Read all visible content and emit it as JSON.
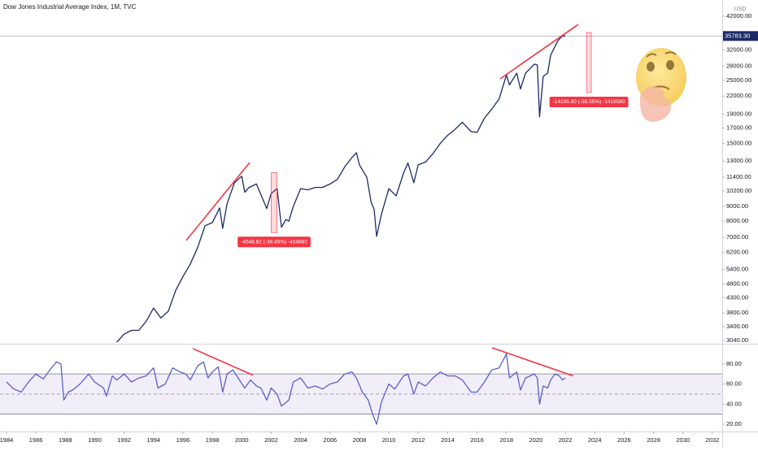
{
  "chart_data": [
    {
      "type": "line",
      "title": "Dow Jones Industrial Average Index, 1M, TVC",
      "unit": "USD",
      "yscale": "log",
      "color": "#1e2a66",
      "xlim": [
        1983.56,
        2032.67
      ],
      "ylim": [
        2961,
        47900
      ],
      "yticks": [
        {
          "value": 42000,
          "label": "42000.00"
        },
        {
          "value": 32000,
          "label": "32000.00"
        },
        {
          "value": 28000,
          "label": "28000.00"
        },
        {
          "value": 25000,
          "label": "25000.00"
        },
        {
          "value": 22000,
          "label": "22000.00"
        },
        {
          "value": 19000,
          "label": "19000.00"
        },
        {
          "value": 17000,
          "label": "17000.00"
        },
        {
          "value": 15000,
          "label": "15000.00"
        },
        {
          "value": 13000,
          "label": "13000.00"
        },
        {
          "value": 11400,
          "label": "11400.00"
        },
        {
          "value": 10200,
          "label": "10200.00"
        },
        {
          "value": 9000,
          "label": "9000.00"
        },
        {
          "value": 8000,
          "label": "8000.00"
        },
        {
          "value": 7000,
          "label": "7000.00"
        },
        {
          "value": 6200,
          "label": "6200.00"
        },
        {
          "value": 5400,
          "label": "5400.00"
        },
        {
          "value": 4800,
          "label": "4800.00"
        },
        {
          "value": 4300,
          "label": "4300.00"
        },
        {
          "value": 3800,
          "label": "3800.00"
        },
        {
          "value": 3400,
          "label": "3400.00"
        },
        {
          "value": 3040,
          "label": "3040.00"
        }
      ],
      "x": [
        1991.5,
        1992.0,
        1992.5,
        1993.0,
        1993.5,
        1994.0,
        1994.5,
        1995.0,
        1995.5,
        1996.0,
        1996.5,
        1997.0,
        1997.5,
        1998.0,
        1998.5,
        1998.7,
        1999.0,
        1999.5,
        2000.0,
        2000.2,
        2000.5,
        2001.0,
        2001.7,
        2002.0,
        2002.4,
        2002.7,
        2003.0,
        2003.2,
        2003.5,
        2004.0,
        2004.5,
        2005.0,
        2005.5,
        2006.0,
        2006.5,
        2007.0,
        2007.5,
        2007.8,
        2008.0,
        2008.5,
        2008.8,
        2009.0,
        2009.17,
        2009.5,
        2010.0,
        2010.5,
        2011.0,
        2011.3,
        2011.7,
        2012.0,
        2012.5,
        2013.0,
        2013.5,
        2014.0,
        2014.5,
        2015.0,
        2015.6,
        2016.0,
        2016.5,
        2017.0,
        2017.5,
        2018.0,
        2018.2,
        2018.7,
        2018.95,
        2019.3,
        2019.9,
        2020.1,
        2020.25,
        2020.5,
        2020.8,
        2021.0,
        2021.5,
        2021.8,
        2022.0
      ],
      "values": [
        3000,
        3200,
        3300,
        3300,
        3550,
        3950,
        3650,
        3850,
        4550,
        5100,
        5650,
        6450,
        7700,
        7900,
        8900,
        7540,
        9200,
        10900,
        11500,
        10100,
        10500,
        10800,
        8850,
        10000,
        10400,
        7600,
        8100,
        7990,
        9000,
        10400,
        10300,
        10500,
        10500,
        10800,
        11200,
        12400,
        13400,
        13900,
        12600,
        11400,
        9300,
        8800,
        7060,
        8450,
        10400,
        9800,
        11800,
        12800,
        10900,
        12600,
        12900,
        13800,
        15000,
        16000,
        16800,
        17800,
        16500,
        16400,
        18400,
        19800,
        21500,
        26100,
        24100,
        26500,
        23300,
        26500,
        28500,
        28300,
        18600,
        25800,
        26500,
        30600,
        34500,
        35800,
        35783.3
      ],
      "last_value": {
        "value": 35783.3,
        "label": "35783.30"
      },
      "trendlines": [
        {
          "x": [
            1996.22,
            2000.54
          ],
          "y": [
            6836,
            12850
          ]
        },
        {
          "x": [
            2017.57,
            2022.88
          ],
          "y": [
            25300,
            39300
          ]
        }
      ],
      "trend_color": "#f23645",
      "measures": [
        {
          "x": [
            2002.0,
            2002.4
          ],
          "y": [
            11830,
            7281
          ],
          "label": "-4548.82 (-38.45%) -454882"
        },
        {
          "x": [
            2023.44,
            2023.77
          ],
          "y": [
            36824,
            22628
          ],
          "label": "-14195.80 (-38.55%) -1419580"
        }
      ]
    },
    {
      "type": "line",
      "color": "#5b5fc7",
      "xlim": [
        1983.56,
        2032.67
      ],
      "ylim": [
        12.8,
        99.2
      ],
      "yticks": [
        {
          "value": 80,
          "label": "80.00"
        },
        {
          "value": 60,
          "label": "60.00"
        },
        {
          "value": 40,
          "label": "40.00"
        },
        {
          "value": 20,
          "label": "20.00"
        }
      ],
      "band": [
        30,
        70
      ],
      "midline": 50,
      "xticks": [
        1984,
        1986,
        1988,
        1990,
        1992,
        1994,
        1996,
        1998,
        2000,
        2002,
        2004,
        2006,
        2008,
        2010,
        2012,
        2014,
        2016,
        2018,
        2020,
        2022,
        2024,
        2026,
        2028,
        2030,
        2032
      ],
      "x": [
        1984.0,
        1984.5,
        1985.0,
        1985.5,
        1986.0,
        1986.5,
        1987.0,
        1987.4,
        1987.7,
        1987.9,
        1988.2,
        1988.5,
        1989.0,
        1989.6,
        1990.0,
        1990.6,
        1990.8,
        1991.2,
        1991.5,
        1992.0,
        1992.5,
        1993.0,
        1993.5,
        1994.0,
        1994.3,
        1994.8,
        1995.3,
        1995.8,
        1996.2,
        1996.5,
        1997.0,
        1997.4,
        1997.7,
        1998.0,
        1998.4,
        1998.7,
        1999.0,
        1999.4,
        1999.8,
        2000.2,
        2000.6,
        2001.0,
        2001.3,
        2001.7,
        2002.0,
        2002.4,
        2002.7,
        2003.2,
        2003.5,
        2004.0,
        2004.5,
        2005.0,
        2005.5,
        2006.0,
        2006.5,
        2007.0,
        2007.5,
        2007.8,
        2008.2,
        2008.6,
        2008.9,
        2009.17,
        2009.5,
        2010.0,
        2010.4,
        2011.0,
        2011.3,
        2011.7,
        2012.0,
        2012.5,
        2013.0,
        2013.5,
        2014.0,
        2014.5,
        2015.0,
        2015.6,
        2016.0,
        2016.5,
        2017.0,
        2017.5,
        2018.0,
        2018.2,
        2018.7,
        2018.95,
        2019.3,
        2019.9,
        2020.1,
        2020.25,
        2020.5,
        2020.8,
        2021.0,
        2021.3,
        2021.6,
        2021.8,
        2022.0
      ],
      "values": [
        62,
        55,
        52,
        62,
        70,
        65,
        75,
        82,
        80,
        44,
        52,
        54,
        60,
        70,
        62,
        56,
        48,
        68,
        64,
        70,
        62,
        66,
        68,
        76,
        56,
        60,
        76,
        72,
        70,
        64,
        78,
        82,
        66,
        72,
        77,
        52,
        70,
        74,
        65,
        56,
        64,
        58,
        56,
        44,
        56,
        50,
        38,
        44,
        62,
        66,
        56,
        58,
        55,
        60,
        62,
        70,
        72,
        66,
        52,
        44,
        30,
        20,
        42,
        60,
        55,
        68,
        70,
        50,
        62,
        58,
        66,
        72,
        68,
        68,
        64,
        52,
        52,
        62,
        74,
        76,
        90,
        66,
        72,
        54,
        66,
        70,
        66,
        40,
        58,
        56,
        64,
        70,
        68,
        64,
        66
      ],
      "trendlines": [
        {
          "x": [
            1996.67,
            2000.76
          ],
          "y": [
            95.2,
            68.8
          ]
        },
        {
          "x": [
            2017.02,
            2022.55
          ],
          "y": [
            96,
            68
          ]
        }
      ],
      "trend_color": "#f23645"
    }
  ]
}
